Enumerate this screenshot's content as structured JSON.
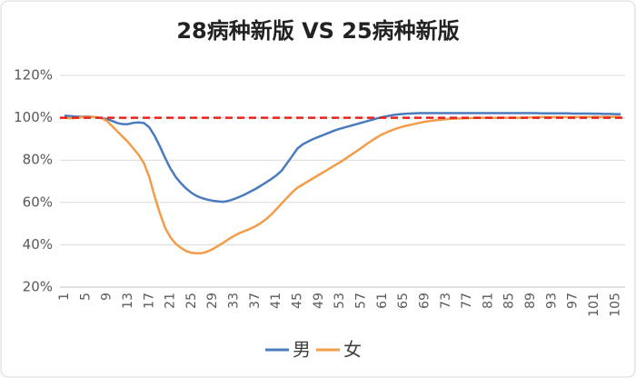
{
  "chart_data": {
    "type": "line",
    "title": "28病种新版 VS 25病种新版",
    "categories": [
      "1",
      null,
      null,
      null,
      "5",
      null,
      null,
      null,
      "9",
      null,
      null,
      null,
      "13",
      null,
      null,
      null,
      "17",
      null,
      null,
      null,
      "21",
      null,
      null,
      null,
      "25",
      null,
      null,
      null,
      "29",
      null,
      null,
      null,
      "33",
      null,
      null,
      null,
      "37",
      null,
      null,
      null,
      "41",
      null,
      null,
      null,
      "45",
      null,
      null,
      null,
      "49",
      null,
      null,
      null,
      "53",
      null,
      null,
      null,
      "57",
      null,
      null,
      null,
      "61",
      null,
      null,
      null,
      "65",
      null,
      null,
      null,
      "69",
      null,
      null,
      null,
      "73",
      null,
      null,
      null,
      "77",
      null,
      null,
      null,
      "81",
      null,
      null,
      null,
      "85",
      null,
      null,
      null,
      "89",
      null,
      null,
      null,
      "93",
      null,
      null,
      null,
      "97",
      null,
      null,
      null,
      "101",
      null,
      null,
      null,
      "105",
      null
    ],
    "series": [
      {
        "name": "男",
        "color": "#4a7bbd",
        "values": [
          101,
          100.8,
          100.6,
          100.5,
          100.6,
          100.5,
          100.2,
          99.8,
          99.4,
          98.5,
          97.5,
          97,
          97,
          97.6,
          97.8,
          97.5,
          95.5,
          91.5,
          86.5,
          81,
          76,
          72,
          69,
          66.5,
          64.5,
          63,
          62,
          61.3,
          60.8,
          60.5,
          60.3,
          60.8,
          61.6,
          62.6,
          63.7,
          65,
          66.3,
          67.8,
          69.4,
          71,
          72.8,
          75,
          78.5,
          82,
          85.5,
          87.5,
          88.8,
          90,
          91,
          92,
          93,
          94,
          94.8,
          95.5,
          96.2,
          96.9,
          97.6,
          98.3,
          99,
          99.7,
          100.3,
          100.8,
          101.3,
          101.6,
          101.8,
          102,
          102.1,
          102.2,
          102.2,
          102.2,
          102.2,
          102.2,
          102.2,
          102.2,
          102.2,
          102.2,
          102.2,
          102.2,
          102.2,
          102.2,
          102.2,
          102.2,
          102.2,
          102.2,
          102.2,
          102.2,
          102.2,
          102.2,
          102.2,
          102.2,
          102.1,
          102.1,
          102.1,
          102.1,
          102.1,
          102.1,
          102,
          102,
          102,
          102,
          101.9,
          101.9,
          101.8,
          101.8,
          101.7,
          101.7
        ]
      },
      {
        "name": "女",
        "color": "#f39c4a",
        "values": [
          100,
          99.8,
          99.9,
          100.2,
          100.5,
          100.4,
          100.2,
          99.8,
          98.5,
          96,
          93.5,
          91,
          88.5,
          85.5,
          82.5,
          78.5,
          72,
          63,
          55,
          48,
          43.5,
          40.5,
          38.5,
          37,
          36.2,
          36,
          36.1,
          36.8,
          38,
          39.5,
          41,
          42.7,
          44.2,
          45.5,
          46.5,
          47.5,
          48.7,
          50.2,
          52,
          54.2,
          56.8,
          59.5,
          62.2,
          64.8,
          67,
          68.5,
          70,
          71.5,
          73,
          74.5,
          76,
          77.5,
          79,
          80.6,
          82.3,
          84,
          85.7,
          87.5,
          89.2,
          90.8,
          92.2,
          93.3,
          94.3,
          95.2,
          95.9,
          96.5,
          97,
          97.6,
          98.1,
          98.5,
          98.8,
          99.1,
          99.3,
          99.5,
          99.6,
          99.7,
          99.8,
          99.9,
          100,
          100,
          100,
          100,
          100,
          100,
          100,
          100,
          100,
          100,
          100.2,
          100.2,
          100.3,
          100.3,
          100.3,
          100.3,
          100.3,
          100.3,
          100.3,
          100.3,
          100.3,
          100.3,
          100.4,
          100.4,
          100.4,
          100.4,
          100.4,
          100.4
        ]
      }
    ],
    "reference_line": {
      "value": 100,
      "color": "#e8231f",
      "dashed": true
    },
    "ylim": [
      20,
      120
    ],
    "yticks": [
      {
        "value": 20,
        "label": "20%"
      },
      {
        "value": 40,
        "label": "40%"
      },
      {
        "value": 60,
        "label": "60%"
      },
      {
        "value": 80,
        "label": "80%"
      },
      {
        "value": 100,
        "label": "100%"
      },
      {
        "value": 120,
        "label": "120%"
      }
    ],
    "grid": true,
    "legend": "bottom"
  }
}
